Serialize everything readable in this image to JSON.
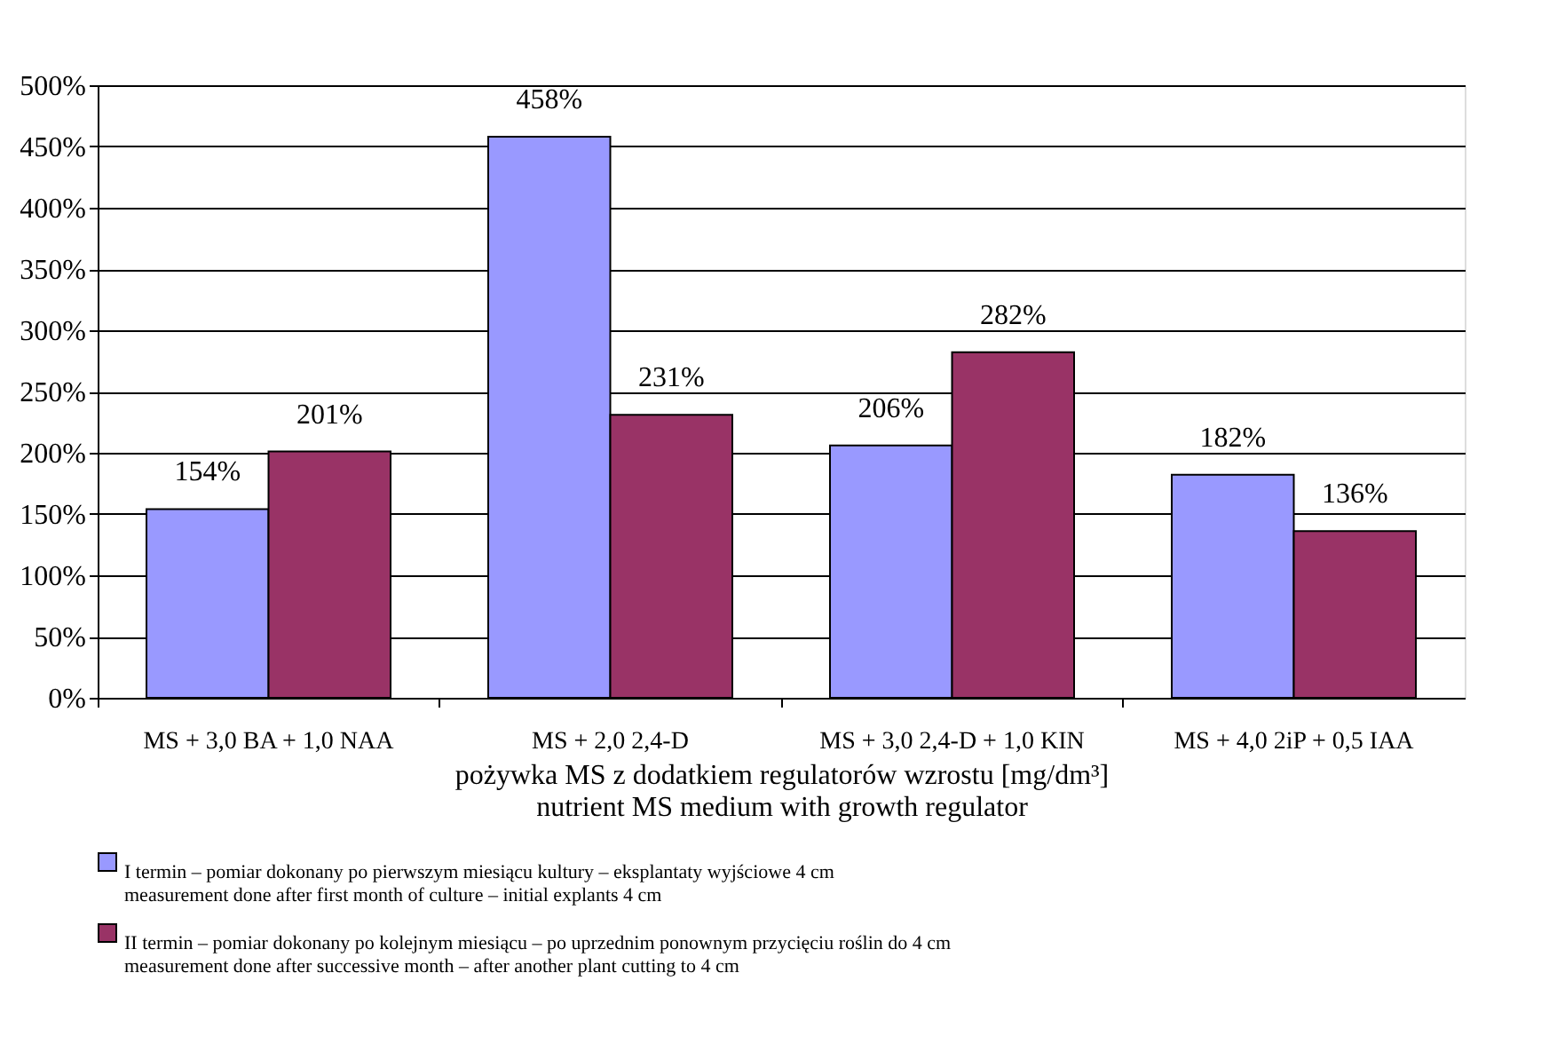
{
  "chart_data": {
    "type": "bar",
    "categories": [
      "MS + 3,0 BA + 1,0 NAA",
      "MS + 2,0 2,4-D",
      "MS + 3,0 2,4-D + 1,0 KIN",
      "MS + 4,0 2iP + 0,5 IAA"
    ],
    "xlabel": "pożywka MS z dodatkiem regulatorów wzrostu  [mg/dm³]\nnutrient MS medium with growth regulator",
    "series": [
      {
        "name": "I termin – pomiar dokonany po pierwszym miesiącu kultury – eksplantaty wyjściowe 4 cm\nmeasurement done after first month of culture – initial explants 4 cm",
        "color": "#9999ff",
        "values": [
          154,
          458,
          206,
          182
        ],
        "value_labels": [
          "154%",
          "458%",
          "206%",
          "182%"
        ]
      },
      {
        "name": "II termin – pomiar dokonany po kolejnym miesiącu – po uprzednim ponownym przycięciu roślin do 4 cm\nmeasurement done after successive month – after another plant cutting to 4 cm",
        "color": "#993366",
        "values": [
          201,
          231,
          282,
          136
        ],
        "value_labels": [
          "201%",
          "231%",
          "282%",
          "136%"
        ]
      }
    ],
    "ylim": [
      0,
      500
    ],
    "yticks": [
      {
        "value": 0,
        "label": "0%"
      },
      {
        "value": 50,
        "label": "50%"
      },
      {
        "value": 100,
        "label": "100%"
      },
      {
        "value": 150,
        "label": "150%"
      },
      {
        "value": 200,
        "label": "200%"
      },
      {
        "value": 250,
        "label": "250%"
      },
      {
        "value": 300,
        "label": "300%"
      },
      {
        "value": 350,
        "label": "350%"
      },
      {
        "value": 400,
        "label": "400%"
      },
      {
        "value": 450,
        "label": "450%"
      },
      {
        "value": 500,
        "label": "500%"
      }
    ],
    "grid": "y",
    "legend": "bottom"
  }
}
